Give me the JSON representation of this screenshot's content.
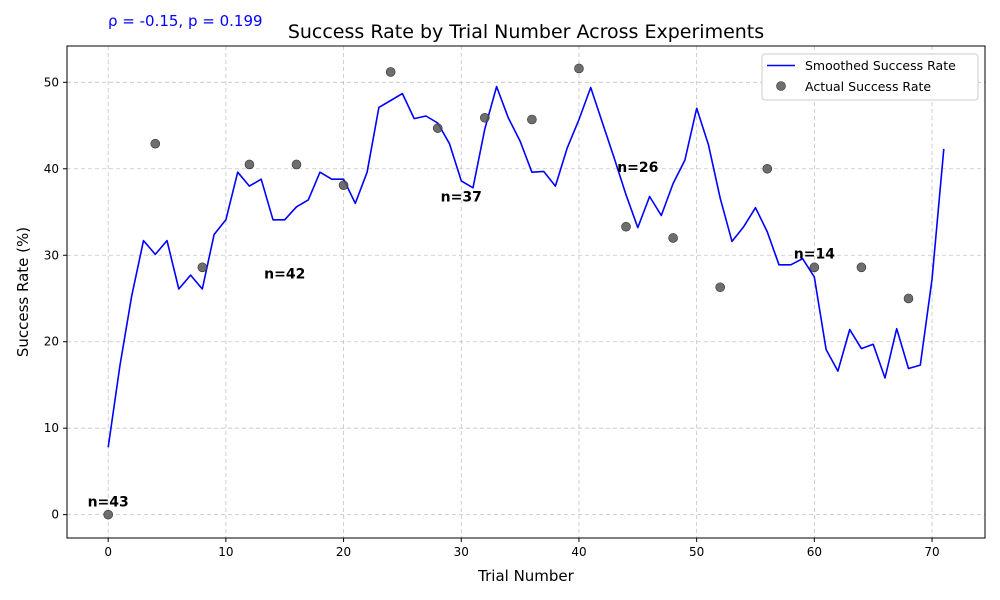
{
  "chart_data": {
    "type": "line",
    "title": "Success Rate by Trial Number Across Experiments",
    "xlabel": "Trial Number",
    "ylabel": "Success Rate (%)",
    "stat_text": "ρ = -0.15, p = 0.199",
    "xlim": [
      -3.5,
      74.5
    ],
    "ylim": [
      -2.7,
      54.2
    ],
    "xticks": [
      0,
      10,
      20,
      30,
      40,
      50,
      60,
      70
    ],
    "yticks": [
      0,
      10,
      20,
      30,
      40,
      50
    ],
    "grid": true,
    "legend_position": "top-right",
    "colors": {
      "line": "#0000ff",
      "scatter": "#555555",
      "stat": "#0000ff"
    },
    "series": [
      {
        "name": "Smoothed Success Rate",
        "kind": "line",
        "x": [
          0,
          1,
          2,
          3,
          4,
          5,
          6,
          7,
          8,
          9,
          10,
          11,
          12,
          13,
          14,
          15,
          16,
          17,
          18,
          19,
          20,
          21,
          22,
          23,
          24,
          25,
          26,
          27,
          28,
          29,
          30,
          31,
          32,
          33,
          34,
          35,
          36,
          37,
          38,
          39,
          40,
          41,
          42,
          43,
          44,
          45,
          46,
          47,
          48,
          49,
          50,
          51,
          52,
          53,
          54,
          55,
          56,
          57,
          58,
          59,
          60,
          61,
          62,
          63,
          64,
          65,
          66,
          67,
          68,
          69,
          70,
          71
        ],
        "y": [
          7.8,
          17.3,
          25.3,
          31.7,
          30.1,
          31.7,
          26.1,
          27.7,
          26.1,
          32.4,
          34.1,
          39.6,
          38.0,
          38.8,
          34.1,
          34.1,
          35.6,
          36.4,
          39.6,
          38.8,
          38.8,
          36.0,
          39.6,
          47.1,
          47.9,
          48.7,
          45.8,
          46.1,
          45.3,
          42.9,
          38.6,
          37.8,
          44.6,
          49.5,
          45.9,
          43.2,
          39.6,
          39.7,
          38.0,
          42.4,
          45.7,
          49.4,
          45.3,
          41.2,
          37.0,
          33.2,
          36.8,
          34.6,
          38.3,
          41.0,
          47.0,
          42.8,
          36.6,
          31.6,
          33.3,
          35.5,
          32.7,
          28.9,
          28.9,
          29.6,
          27.5,
          19.1,
          16.6,
          21.4,
          19.2,
          19.7,
          15.8,
          21.5,
          16.9,
          17.3,
          27.2,
          42.3
        ]
      },
      {
        "name": "Actual Success Rate",
        "kind": "scatter",
        "x": [
          0,
          4,
          8,
          12,
          16,
          20,
          24,
          28,
          32,
          36,
          40,
          44,
          48,
          52,
          56,
          60,
          64,
          68
        ],
        "y": [
          0.0,
          42.9,
          28.6,
          40.5,
          40.5,
          38.1,
          51.2,
          44.7,
          45.9,
          45.7,
          51.6,
          33.3,
          32.0,
          26.3,
          40.0,
          28.6,
          28.6,
          25.0
        ]
      }
    ],
    "annotations": [
      {
        "text": "n=43",
        "x": 0,
        "y": 1.5
      },
      {
        "text": "n=42",
        "x": 15,
        "y": 27.9
      },
      {
        "text": "n=37",
        "x": 30,
        "y": 36.8
      },
      {
        "text": "n=26",
        "x": 45,
        "y": 40.2
      },
      {
        "text": "n=14",
        "x": 60,
        "y": 30.2
      }
    ]
  }
}
